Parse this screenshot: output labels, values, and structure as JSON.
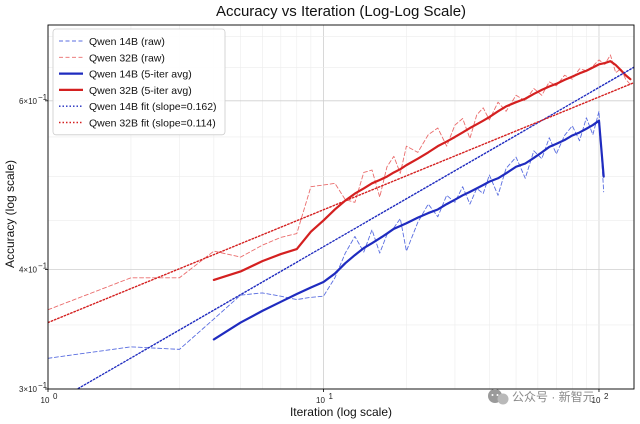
{
  "chart_data": {
    "type": "line",
    "title": "Accuracy vs Iteration (Log-Log Scale)",
    "xlabel": "Iteration (log scale)",
    "ylabel": "Accuracy (log scale)",
    "x_scale": "log",
    "y_scale": "log",
    "xlim": [
      1,
      134
    ],
    "ylim": [
      0.3,
      0.72
    ],
    "grid": true,
    "legend_position": "top-left",
    "x_ticks": [
      {
        "value": 1,
        "base": "10",
        "exp": "0"
      },
      {
        "value": 10,
        "base": "10",
        "exp": "1"
      },
      {
        "value": 100,
        "base": "10",
        "exp": "2"
      }
    ],
    "y_ticks": [
      {
        "value": 0.3,
        "mant": "3",
        "times": "×10",
        "exp": "−1"
      },
      {
        "value": 0.4,
        "mant": "4",
        "times": "×10",
        "exp": "−1"
      },
      {
        "value": 0.6,
        "mant": "6",
        "times": "×10",
        "exp": "−1"
      }
    ],
    "colors": {
      "q14": "#1f2bbf",
      "q32": "#d42020",
      "q14_raw": "#5a6ee0",
      "q32_raw": "#ea6c6c"
    },
    "series": [
      {
        "name": "Qwen 14B (raw)",
        "style": "dashed",
        "color": "#5a6ee0",
        "x": [
          1,
          2,
          3,
          4,
          5,
          6,
          7,
          8,
          9,
          10,
          11,
          12,
          13,
          14,
          15,
          16,
          17,
          18,
          19,
          20,
          22,
          24,
          26,
          28,
          30,
          32,
          34,
          36,
          38,
          40,
          43,
          46,
          50,
          54,
          58,
          62,
          66,
          70,
          75,
          80,
          85,
          90,
          95,
          100,
          104
        ],
        "y": [
          0.323,
          0.332,
          0.33,
          0.355,
          0.376,
          0.378,
          0.375,
          0.372,
          0.374,
          0.375,
          0.392,
          0.416,
          0.433,
          0.417,
          0.44,
          0.416,
          0.435,
          0.442,
          0.452,
          0.418,
          0.448,
          0.468,
          0.454,
          0.478,
          0.47,
          0.488,
          0.468,
          0.486,
          0.48,
          0.502,
          0.478,
          0.51,
          0.524,
          0.498,
          0.532,
          0.522,
          0.549,
          0.528,
          0.552,
          0.565,
          0.545,
          0.576,
          0.553,
          0.585,
          0.482
        ]
      },
      {
        "name": "Qwen 32B (raw)",
        "style": "dashed",
        "color": "#ea6c6c",
        "x": [
          1,
          2,
          3,
          4,
          5,
          6,
          7,
          8,
          9,
          10,
          11,
          12,
          13,
          14,
          15,
          16,
          17,
          18,
          19,
          20,
          22,
          24,
          26,
          28,
          30,
          32,
          34,
          36,
          38,
          40,
          43,
          46,
          50,
          54,
          58,
          62,
          66,
          70,
          75,
          80,
          85,
          90,
          95,
          100,
          105,
          110,
          115,
          120,
          125,
          130
        ],
        "y": [
          0.363,
          0.392,
          0.392,
          0.418,
          0.412,
          0.424,
          0.432,
          0.436,
          0.488,
          0.49,
          0.492,
          0.473,
          0.47,
          0.505,
          0.508,
          0.476,
          0.512,
          0.525,
          0.504,
          0.538,
          0.53,
          0.553,
          0.562,
          0.538,
          0.566,
          0.575,
          0.548,
          0.58,
          0.59,
          0.573,
          0.598,
          0.585,
          0.608,
          0.6,
          0.618,
          0.608,
          0.628,
          0.622,
          0.638,
          0.632,
          0.648,
          0.645,
          0.652,
          0.662,
          0.655,
          0.67,
          0.642,
          0.648,
          0.632,
          0.624
        ]
      },
      {
        "name": "Qwen 14B (5-iter avg)",
        "style": "solid",
        "color": "#1f2bbf",
        "x": [
          4,
          5,
          6,
          7,
          8,
          9,
          10,
          11,
          12,
          13,
          14,
          15,
          16,
          17,
          18,
          19,
          20,
          22,
          24,
          26,
          28,
          30,
          32,
          34,
          36,
          38,
          40,
          43,
          46,
          50,
          54,
          58,
          62,
          66,
          70,
          75,
          80,
          85,
          90,
          95,
          100,
          104
        ],
        "y": [
          0.338,
          0.352,
          0.362,
          0.37,
          0.377,
          0.383,
          0.388,
          0.396,
          0.406,
          0.414,
          0.421,
          0.426,
          0.431,
          0.436,
          0.441,
          0.444,
          0.447,
          0.453,
          0.458,
          0.462,
          0.468,
          0.473,
          0.478,
          0.482,
          0.486,
          0.49,
          0.494,
          0.498,
          0.504,
          0.512,
          0.516,
          0.523,
          0.53,
          0.537,
          0.541,
          0.546,
          0.552,
          0.556,
          0.561,
          0.566,
          0.572,
          0.5
        ]
      },
      {
        "name": "Qwen 32B (5-iter avg)",
        "style": "solid",
        "color": "#d42020",
        "x": [
          4,
          5,
          6,
          7,
          8,
          9,
          10,
          11,
          12,
          13,
          14,
          15,
          16,
          17,
          18,
          19,
          20,
          22,
          24,
          26,
          28,
          30,
          32,
          34,
          36,
          38,
          40,
          43,
          46,
          50,
          54,
          58,
          62,
          66,
          70,
          75,
          80,
          85,
          90,
          95,
          100,
          105,
          110,
          115,
          120,
          125,
          130
        ],
        "y": [
          0.39,
          0.398,
          0.408,
          0.415,
          0.42,
          0.438,
          0.45,
          0.462,
          0.472,
          0.48,
          0.486,
          0.492,
          0.496,
          0.5,
          0.505,
          0.509,
          0.514,
          0.522,
          0.53,
          0.538,
          0.544,
          0.55,
          0.556,
          0.562,
          0.567,
          0.572,
          0.577,
          0.585,
          0.592,
          0.598,
          0.603,
          0.61,
          0.616,
          0.621,
          0.625,
          0.631,
          0.636,
          0.641,
          0.645,
          0.65,
          0.655,
          0.657,
          0.66,
          0.654,
          0.646,
          0.638,
          0.632
        ]
      },
      {
        "name": "Qwen 14B fit (slope=0.162)",
        "style": "dotted",
        "color": "#1f2bbf",
        "x": [
          1,
          134
        ],
        "y": [
          0.288,
          0.6505
        ]
      },
      {
        "name": "Qwen 32B fit (slope=0.114)",
        "style": "dotted",
        "color": "#d42020",
        "x": [
          1,
          134
        ],
        "y": [
          0.352,
          0.6268
        ]
      }
    ]
  },
  "watermark": {
    "text": "公众号 · 新智元"
  }
}
